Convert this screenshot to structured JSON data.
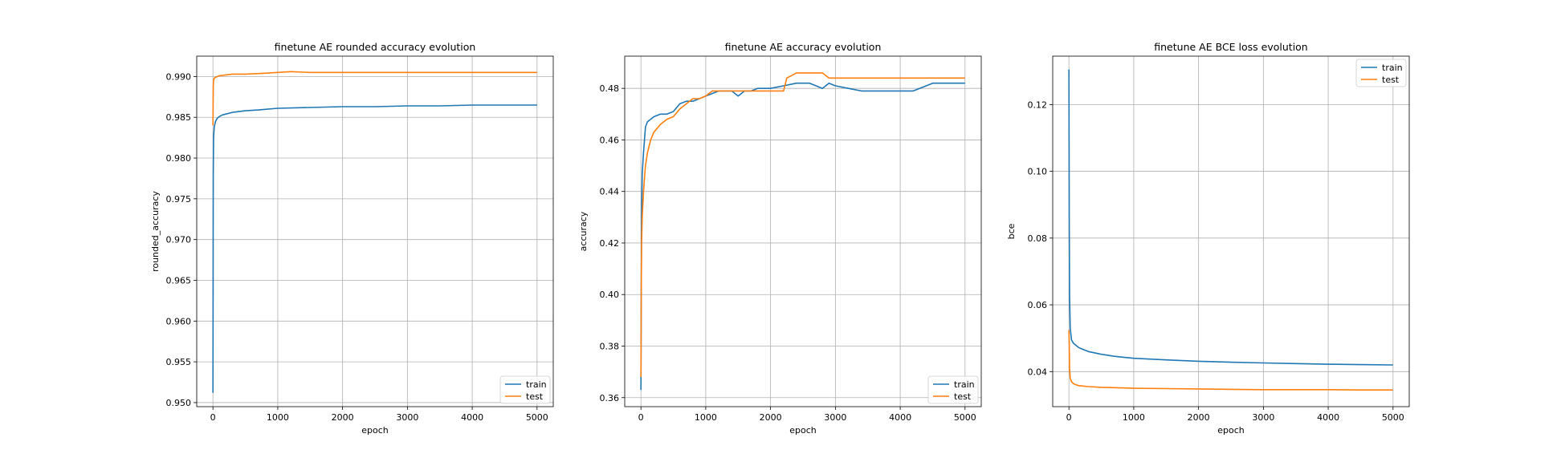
{
  "chart_data": [
    {
      "type": "line",
      "title": "finetune AE rounded accuracy evolution",
      "xlabel": "epoch",
      "ylabel": "rounded_accuracy",
      "xlim": [
        -250,
        5250
      ],
      "ylim": [
        0.9495,
        0.9925
      ],
      "xticks": [
        0,
        1000,
        2000,
        3000,
        4000,
        5000
      ],
      "yticks": [
        0.95,
        0.955,
        0.96,
        0.965,
        0.97,
        0.975,
        0.98,
        0.985,
        0.99
      ],
      "ytick_labels": [
        "0.950",
        "0.955",
        "0.960",
        "0.965",
        "0.970",
        "0.975",
        "0.980",
        "0.985",
        "0.990"
      ],
      "grid": true,
      "legend": "lower-right",
      "series": [
        {
          "name": "train",
          "color": "#1f77b4",
          "x": [
            0,
            5,
            10,
            20,
            40,
            70,
            100,
            150,
            200,
            300,
            500,
            700,
            1000,
            1500,
            2000,
            2500,
            3000,
            3500,
            4000,
            4500,
            5000
          ],
          "y": [
            0.9512,
            0.978,
            0.9825,
            0.9838,
            0.9845,
            0.9849,
            0.9851,
            0.9853,
            0.9854,
            0.9856,
            0.9858,
            0.9859,
            0.9861,
            0.9862,
            0.9863,
            0.9863,
            0.9864,
            0.9864,
            0.9865,
            0.9865,
            0.9865
          ]
        },
        {
          "name": "test",
          "color": "#ff7f0e",
          "x": [
            0,
            5,
            10,
            20,
            40,
            70,
            100,
            200,
            300,
            500,
            800,
            1000,
            1200,
            1500,
            2000,
            2500,
            3000,
            3500,
            4000,
            4500,
            5000
          ],
          "y": [
            0.984,
            0.9888,
            0.9895,
            0.9898,
            0.9899,
            0.99,
            0.9901,
            0.9902,
            0.9903,
            0.9903,
            0.9904,
            0.9905,
            0.9906,
            0.9905,
            0.9905,
            0.9905,
            0.9905,
            0.9905,
            0.9905,
            0.9905,
            0.9905
          ]
        }
      ]
    },
    {
      "type": "line",
      "title": "finetune AE accuracy evolution",
      "xlabel": "epoch",
      "ylabel": "accuracy",
      "xlim": [
        -250,
        5250
      ],
      "ylim": [
        0.3565,
        0.4925
      ],
      "xticks": [
        0,
        1000,
        2000,
        3000,
        4000,
        5000
      ],
      "yticks": [
        0.36,
        0.38,
        0.4,
        0.42,
        0.44,
        0.46,
        0.48
      ],
      "ytick_labels": [
        "0.36",
        "0.38",
        "0.40",
        "0.42",
        "0.44",
        "0.46",
        "0.48"
      ],
      "grid": true,
      "legend": "lower-right",
      "series": [
        {
          "name": "train",
          "color": "#1f77b4",
          "x": [
            0,
            5,
            10,
            20,
            40,
            70,
            100,
            150,
            200,
            300,
            400,
            500,
            600,
            700,
            800,
            900,
            1000,
            1100,
            1200,
            1400,
            1500,
            1600,
            1700,
            1800,
            2000,
            2200,
            2400,
            2600,
            2800,
            2900,
            3000,
            3200,
            3400,
            3600,
            3800,
            4000,
            4200,
            4400,
            4500,
            4700,
            5000
          ],
          "y": [
            0.363,
            0.4,
            0.43,
            0.447,
            0.455,
            0.465,
            0.467,
            0.468,
            0.469,
            0.47,
            0.47,
            0.471,
            0.474,
            0.475,
            0.475,
            0.476,
            0.477,
            0.478,
            0.479,
            0.479,
            0.477,
            0.479,
            0.479,
            0.48,
            0.48,
            0.481,
            0.482,
            0.482,
            0.48,
            0.482,
            0.481,
            0.48,
            0.479,
            0.479,
            0.479,
            0.479,
            0.479,
            0.481,
            0.482,
            0.482,
            0.482
          ]
        },
        {
          "name": "test",
          "color": "#ff7f0e",
          "x": [
            0,
            5,
            10,
            20,
            40,
            70,
            100,
            150,
            200,
            300,
            400,
            500,
            600,
            700,
            800,
            900,
            1000,
            1100,
            1200,
            1400,
            1600,
            1800,
            2000,
            2200,
            2250,
            2400,
            2600,
            2800,
            2900,
            3000,
            3200,
            3400,
            3600,
            3800,
            4000,
            4200,
            4300,
            4500,
            4700,
            5000
          ],
          "y": [
            0.368,
            0.4,
            0.42,
            0.43,
            0.44,
            0.45,
            0.455,
            0.46,
            0.463,
            0.466,
            0.468,
            0.469,
            0.472,
            0.474,
            0.476,
            0.476,
            0.477,
            0.479,
            0.479,
            0.479,
            0.479,
            0.479,
            0.479,
            0.479,
            0.484,
            0.486,
            0.486,
            0.486,
            0.484,
            0.484,
            0.484,
            0.484,
            0.484,
            0.484,
            0.484,
            0.484,
            0.484,
            0.484,
            0.484,
            0.484
          ]
        }
      ]
    },
    {
      "type": "line",
      "title": "finetune AE BCE loss evolution",
      "xlabel": "epoch",
      "ylabel": "bce",
      "xlim": [
        -250,
        5250
      ],
      "ylim": [
        0.0295,
        0.1345
      ],
      "xticks": [
        0,
        1000,
        2000,
        3000,
        4000,
        5000
      ],
      "yticks": [
        0.04,
        0.06,
        0.08,
        0.1,
        0.12
      ],
      "ytick_labels": [
        "0.04",
        "0.06",
        "0.08",
        "0.10",
        "0.12"
      ],
      "grid": true,
      "legend": "upper-right",
      "series": [
        {
          "name": "train",
          "color": "#1f77b4",
          "x": [
            0,
            5,
            10,
            20,
            40,
            70,
            100,
            150,
            200,
            300,
            500,
            700,
            1000,
            1500,
            2000,
            2500,
            3000,
            3500,
            4000,
            4500,
            5000
          ],
          "y": [
            0.1305,
            0.085,
            0.063,
            0.053,
            0.0495,
            0.0485,
            0.048,
            0.0472,
            0.0468,
            0.046,
            0.0452,
            0.0446,
            0.044,
            0.0435,
            0.0431,
            0.0428,
            0.0426,
            0.0424,
            0.0422,
            0.0421,
            0.042
          ]
        },
        {
          "name": "test",
          "color": "#ff7f0e",
          "x": [
            0,
            5,
            10,
            20,
            40,
            70,
            100,
            150,
            200,
            300,
            500,
            700,
            1000,
            1500,
            2000,
            2500,
            3000,
            3500,
            4000,
            4500,
            5000
          ],
          "y": [
            0.0525,
            0.048,
            0.041,
            0.038,
            0.037,
            0.0364,
            0.0361,
            0.0358,
            0.0357,
            0.0355,
            0.0353,
            0.0352,
            0.035,
            0.0349,
            0.0348,
            0.0347,
            0.0346,
            0.0346,
            0.0346,
            0.0345,
            0.0345
          ]
        }
      ]
    }
  ]
}
